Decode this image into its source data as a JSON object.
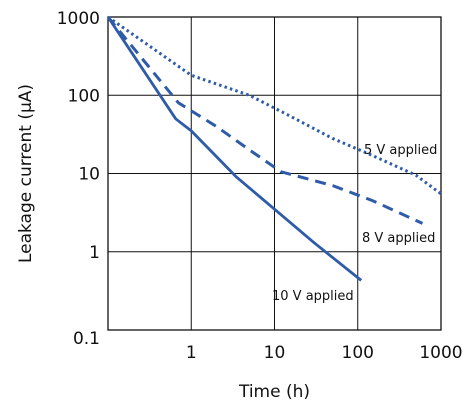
{
  "chart_data": {
    "type": "line",
    "title": "",
    "xlabel": "Time (h)",
    "ylabel": "Leakage current (μA)",
    "x_scale": "log",
    "y_scale": "log",
    "xlim": [
      0.1,
      1000
    ],
    "ylim": [
      0.1,
      1000
    ],
    "grid": true,
    "x_ticks": [
      {
        "value": 1,
        "label": "1"
      },
      {
        "value": 10,
        "label": "10"
      },
      {
        "value": 100,
        "label": "100"
      },
      {
        "value": 1000,
        "label": "1000"
      }
    ],
    "y_ticks": [
      {
        "value": 0.1,
        "label": "0.1"
      },
      {
        "value": 1,
        "label": "1"
      },
      {
        "value": 10,
        "label": "10"
      },
      {
        "value": 100,
        "label": "100"
      },
      {
        "value": 1000,
        "label": "1000"
      }
    ],
    "series": [
      {
        "name": "5 V  applied",
        "line_style": "dotted",
        "color": "#2e5ca8",
        "x": [
          0.1,
          1,
          5,
          15,
          50,
          150,
          500,
          1000
        ],
        "y": [
          1000,
          180,
          100,
          55,
          28,
          17,
          9.5,
          5.5
        ]
      },
      {
        "name": "8 V  applied",
        "line_style": "dashed",
        "color": "#2e5ca8",
        "x": [
          0.1,
          0.7,
          2,
          5,
          12,
          50,
          150,
          600
        ],
        "y": [
          1000,
          80,
          40,
          20,
          10.5,
          7,
          4.5,
          2.3
        ]
      },
      {
        "name": "10 V  applied",
        "line_style": "solid",
        "color": "#2e5ca8",
        "x": [
          0.1,
          0.65,
          1,
          3.5,
          10,
          30,
          110
        ],
        "y": [
          1000,
          50,
          35,
          9,
          3.5,
          1.3,
          0.43
        ]
      }
    ]
  }
}
